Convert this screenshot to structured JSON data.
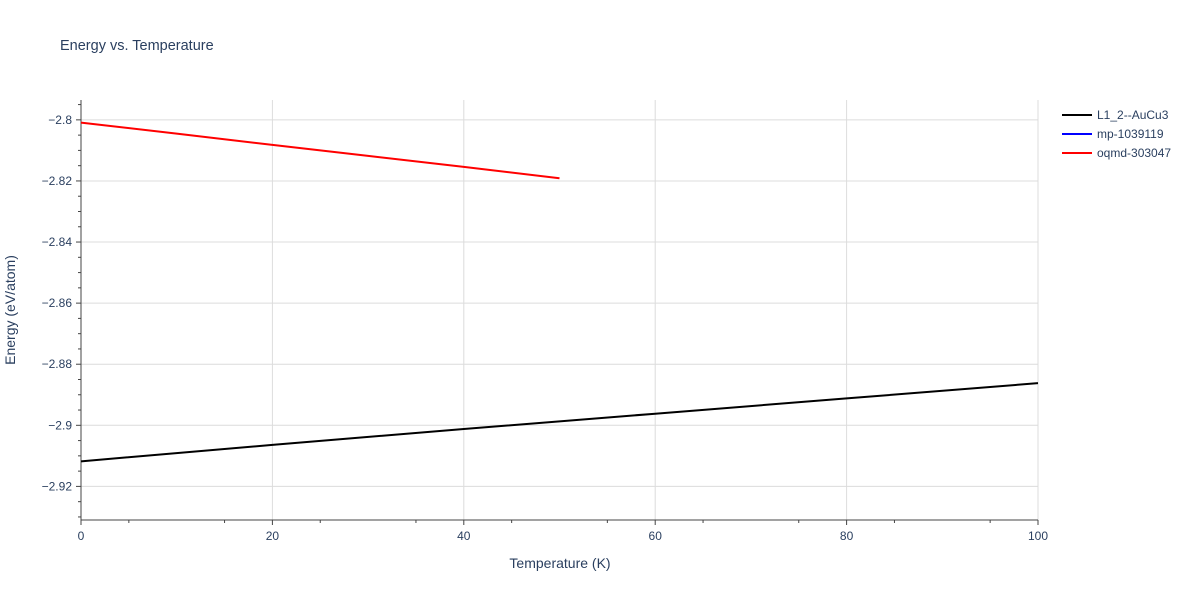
{
  "chart_data": {
    "type": "line",
    "title": "Energy vs. Temperature",
    "xlabel": "Temperature (K)",
    "ylabel": "Energy (eV/atom)",
    "xlim": [
      0,
      100
    ],
    "ylim": [
      -2.931,
      -2.7935
    ],
    "x_ticks": [
      0,
      20,
      40,
      60,
      80,
      100
    ],
    "x_tick_labels": [
      "0",
      "20",
      "40",
      "60",
      "80",
      "100"
    ],
    "y_ticks": [
      -2.8,
      -2.82,
      -2.84,
      -2.86,
      -2.88,
      -2.9,
      -2.92
    ],
    "y_tick_labels": [
      "−2.8",
      "−2.82",
      "−2.84",
      "−2.86",
      "−2.88",
      "−2.9",
      "−2.92"
    ],
    "grid": true,
    "legend_position": "top-right",
    "series": [
      {
        "name": "L1_2--AuCu3",
        "color": "#000000",
        "x": [
          0,
          20,
          40,
          60,
          80,
          100
        ],
        "y": [
          -2.9118,
          -2.9064,
          -2.9012,
          -2.8962,
          -2.8912,
          -2.8862
        ]
      },
      {
        "name": "mp-1039119",
        "color": "#0000ff",
        "x": [],
        "y": []
      },
      {
        "name": "oqmd-303047",
        "color": "#ff0000",
        "x": [
          0,
          10,
          20,
          30,
          40,
          50
        ],
        "y": [
          -2.8009,
          -2.8045,
          -2.8082,
          -2.8118,
          -2.8154,
          -2.8191
        ]
      }
    ]
  }
}
